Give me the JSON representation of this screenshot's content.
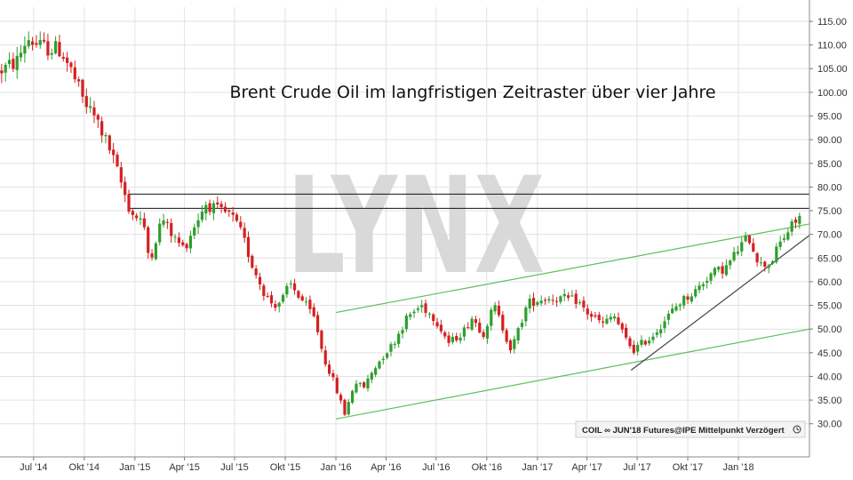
{
  "watermark": "LYNX",
  "source_label": "COIL ∞ JUN'18 Futures@IPE Mittelpunkt Verzögert",
  "colors": {
    "up": "#2e9e2e",
    "down": "#d42020",
    "grid": "#e2e2e2",
    "resistance": "#111111",
    "channel": "#5cc05c",
    "trendline": "#444444"
  },
  "chart_data": {
    "type": "candlestick",
    "title": "Brent Crude Oil im langfristigen Zeitraster über vier Jahre",
    "ylim": [
      23,
      118
    ],
    "xlim": [
      "2014-05-01",
      "2018-05-10"
    ],
    "grid": true,
    "y_ticks": [
      "115.00",
      "110.00",
      "105.00",
      "100.00",
      "95.00",
      "90.00",
      "85.00",
      "80.00",
      "75.00",
      "70.00",
      "65.00",
      "60.00",
      "55.00",
      "50.00",
      "45.00",
      "40.00",
      "35.00",
      "30.00"
    ],
    "x_ticks": [
      {
        "date": "2014-07-01",
        "label": "Jul '14"
      },
      {
        "date": "2014-10-01",
        "label": "Okt '14"
      },
      {
        "date": "2015-01-01",
        "label": "Jan '15"
      },
      {
        "date": "2015-04-01",
        "label": "Apr '15"
      },
      {
        "date": "2015-07-01",
        "label": "Jul '15"
      },
      {
        "date": "2015-10-01",
        "label": "Okt '15"
      },
      {
        "date": "2016-01-01",
        "label": "Jan '16"
      },
      {
        "date": "2016-04-01",
        "label": "Apr '16"
      },
      {
        "date": "2016-07-01",
        "label": "Jul '16"
      },
      {
        "date": "2016-10-01",
        "label": "Okt '16"
      },
      {
        "date": "2017-01-01",
        "label": "Jan '17"
      },
      {
        "date": "2017-04-01",
        "label": "Apr '17"
      },
      {
        "date": "2017-07-01",
        "label": "Jul '17"
      },
      {
        "date": "2017-10-01",
        "label": "Okt '17"
      },
      {
        "date": "2018-01-01",
        "label": "Jan '18"
      }
    ],
    "price_path": [
      [
        "2014-05-01",
        104.5
      ],
      [
        "2014-06-01",
        106.5
      ],
      [
        "2014-06-20",
        111.5
      ],
      [
        "2014-07-15",
        109.5
      ],
      [
        "2014-08-20",
        109.0
      ],
      [
        "2014-09-10",
        104.0
      ],
      [
        "2014-10-01",
        98.0
      ],
      [
        "2014-10-25",
        94.0
      ],
      [
        "2014-11-20",
        87.0
      ],
      [
        "2014-12-10",
        80.0
      ],
      [
        "2014-12-25",
        74.5
      ],
      [
        "2015-01-15",
        73.0
      ],
      [
        "2015-01-28",
        64.5
      ],
      [
        "2015-02-20",
        73.5
      ],
      [
        "2015-03-15",
        69.0
      ],
      [
        "2015-04-01",
        67.0
      ],
      [
        "2015-04-20",
        72.0
      ],
      [
        "2015-05-10",
        76.5
      ],
      [
        "2015-06-01",
        75.0
      ],
      [
        "2015-06-25",
        74.0
      ],
      [
        "2015-07-15",
        70.0
      ],
      [
        "2015-08-01",
        64.0
      ],
      [
        "2015-08-25",
        57.5
      ],
      [
        "2015-09-10",
        55.0
      ],
      [
        "2015-09-25",
        56.0
      ],
      [
        "2015-10-10",
        59.5
      ],
      [
        "2015-11-05",
        55.5
      ],
      [
        "2015-11-25",
        52.0
      ],
      [
        "2015-12-10",
        44.0
      ],
      [
        "2015-12-25",
        40.0
      ],
      [
        "2016-01-18",
        32.0
      ],
      [
        "2016-02-05",
        39.0
      ],
      [
        "2016-02-20",
        37.5
      ],
      [
        "2016-03-10",
        41.5
      ],
      [
        "2016-03-25",
        44.0
      ],
      [
        "2016-04-15",
        47.0
      ],
      [
        "2016-05-10",
        52.5
      ],
      [
        "2016-06-05",
        55.0
      ],
      [
        "2016-07-01",
        52.0
      ],
      [
        "2016-07-25",
        47.0
      ],
      [
        "2016-08-20",
        49.5
      ],
      [
        "2016-09-05",
        52.5
      ],
      [
        "2016-09-25",
        49.0
      ],
      [
        "2016-10-15",
        55.0
      ],
      [
        "2016-11-15",
        45.5
      ],
      [
        "2016-12-15",
        55.5
      ],
      [
        "2017-01-15",
        56.5
      ],
      [
        "2017-02-15",
        56.5
      ],
      [
        "2017-03-15",
        56.0
      ],
      [
        "2017-04-01",
        53.5
      ],
      [
        "2017-05-01",
        51.0
      ],
      [
        "2017-05-20",
        53.0
      ],
      [
        "2017-06-10",
        48.0
      ],
      [
        "2017-06-25",
        45.5
      ],
      [
        "2017-07-10",
        47.0
      ],
      [
        "2017-07-25",
        48.0
      ],
      [
        "2017-08-15",
        51.0
      ],
      [
        "2017-09-15",
        55.5
      ],
      [
        "2017-10-15",
        58.0
      ],
      [
        "2017-11-10",
        61.5
      ],
      [
        "2017-12-10",
        63.0
      ],
      [
        "2018-01-05",
        67.5
      ],
      [
        "2018-01-20",
        69.5
      ],
      [
        "2018-02-10",
        63.5
      ],
      [
        "2018-03-01",
        64.0
      ],
      [
        "2018-03-20",
        68.5
      ],
      [
        "2018-04-10",
        72.0
      ],
      [
        "2018-04-25",
        74.0
      ]
    ],
    "lines": [
      {
        "kind": "resistance",
        "from": [
          "2014-12-20",
          78.5
        ],
        "to": [
          "2018-05-10",
          78.5
        ]
      },
      {
        "kind": "resistance",
        "from": [
          "2014-12-20",
          75.5
        ],
        "to": [
          "2018-05-10",
          75.5
        ]
      },
      {
        "kind": "channel",
        "from": [
          "2016-01-01",
          53.5
        ],
        "to": [
          "2018-05-10",
          72.2
        ]
      },
      {
        "kind": "channel",
        "from": [
          "2016-01-01",
          31.0
        ],
        "to": [
          "2018-05-10",
          50.0
        ]
      },
      {
        "kind": "trendline",
        "from": [
          "2017-06-20",
          41.3
        ],
        "to": [
          "2018-05-10",
          69.8
        ]
      }
    ]
  }
}
